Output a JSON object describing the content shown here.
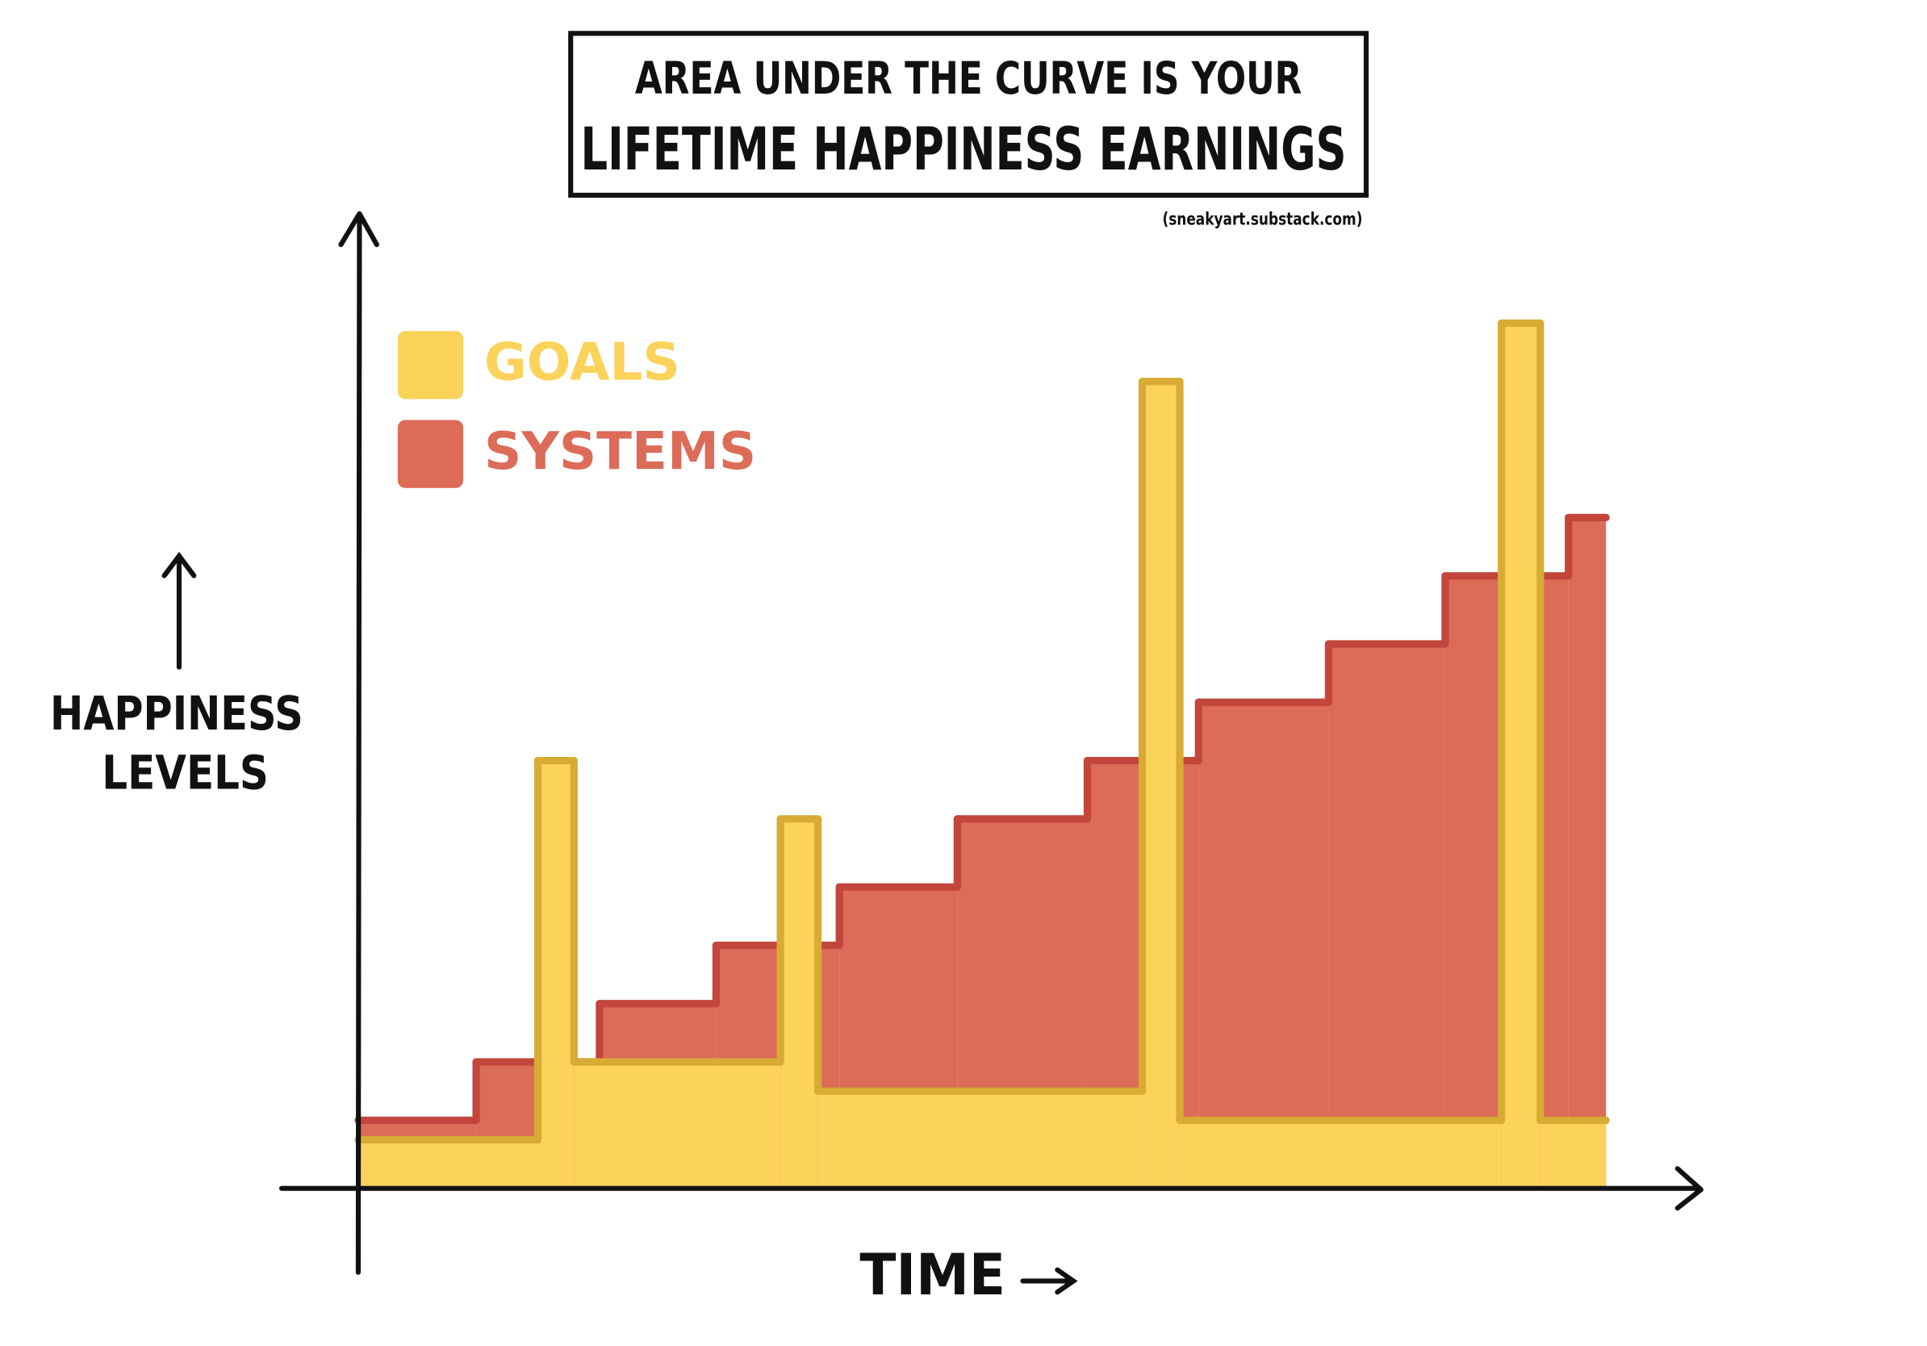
{
  "chart_data": {
    "type": "step-area",
    "title": [
      "AREA UNDER THE CURVE IS YOUR",
      "LIFETIME HAPPINESS EARNINGS"
    ],
    "credit": "(sneakyart.substack.com)",
    "ylabel": [
      "HAPPINESS",
      "LEVELS"
    ],
    "xlabel": "TIME",
    "xlim": [
      0,
      100
    ],
    "ylim": [
      0,
      100
    ],
    "x_end": 93.1,
    "series": [
      {
        "name": "SYSTEMS",
        "color": "#dc6b58",
        "edge_color": "#c2463c",
        "x": [
          0,
          8.8,
          18,
          26.7,
          35.9,
          44.7,
          54.4,
          62.7,
          72.4,
          81.1,
          90.3
        ],
        "values": [
          7,
          13,
          19,
          25,
          31,
          38,
          44,
          50,
          56,
          63,
          69
        ]
      },
      {
        "name": "GOALS",
        "color": "#fbd25a",
        "edge_color": "#d8ab34",
        "x": [
          0,
          13.4,
          16.1,
          31.5,
          34.3,
          58.5,
          61.3,
          85.3,
          88.2
        ],
        "values": [
          5,
          44,
          13,
          38,
          10,
          83,
          7,
          89,
          7
        ]
      }
    ]
  }
}
